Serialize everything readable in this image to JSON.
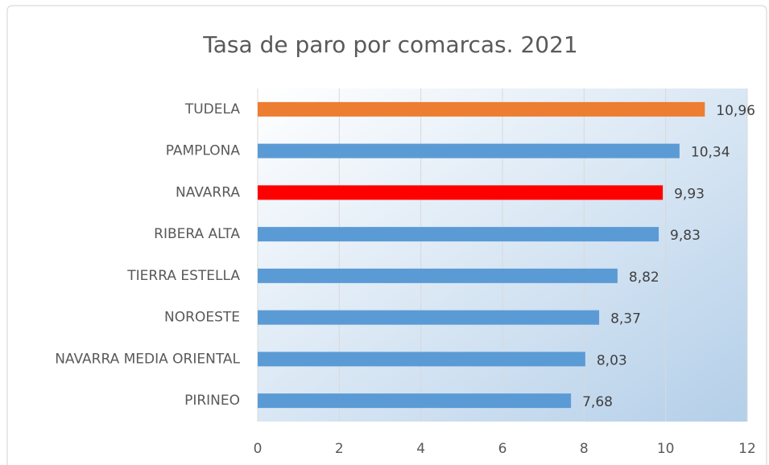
{
  "chart_data": {
    "type": "bar",
    "orientation": "horizontal",
    "title": "Tasa de paro por comarcas. 2021",
    "categories": [
      "TUDELA",
      "PAMPLONA",
      "NAVARRA",
      "RIBERA ALTA",
      "TIERRA ESTELLA",
      "NOROESTE",
      "NAVARRA MEDIA ORIENTAL",
      "PIRINEO"
    ],
    "values": [
      10.96,
      10.34,
      9.93,
      9.83,
      8.82,
      8.37,
      8.03,
      7.68
    ],
    "value_labels": [
      "10,96",
      "10,34",
      "9,93",
      "9,83",
      "8,82",
      "8,37",
      "8,03",
      "7,68"
    ],
    "colors": [
      "#ed7d31",
      "#5b9bd5",
      "#ff0000",
      "#5b9bd5",
      "#5b9bd5",
      "#5b9bd5",
      "#5b9bd5",
      "#5b9bd5"
    ],
    "xlim": [
      0,
      12
    ],
    "xticks": [
      0,
      2,
      4,
      6,
      8,
      10,
      12
    ],
    "grid": true
  }
}
